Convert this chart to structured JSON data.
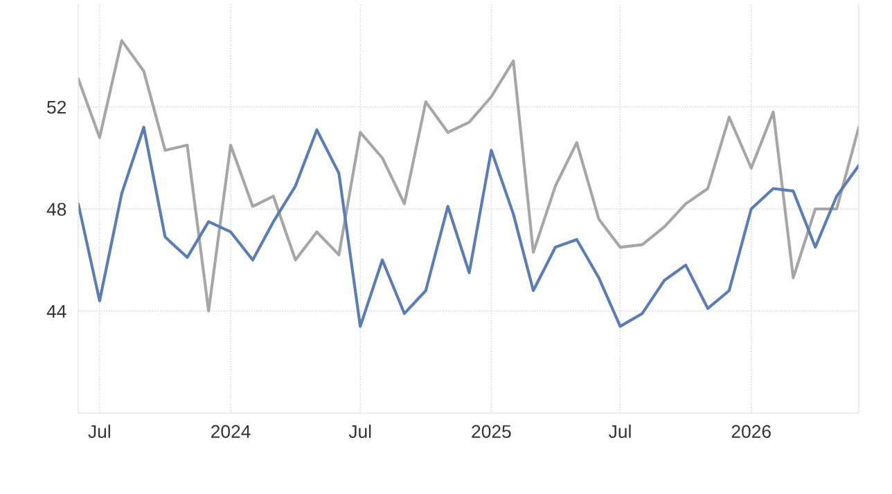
{
  "chart_data": {
    "type": "line",
    "x": [
      "2023-06",
      "2023-07",
      "2023-08",
      "2023-09",
      "2023-10",
      "2023-11",
      "2023-12",
      "2024-01",
      "2024-02",
      "2024-03",
      "2024-04",
      "2024-05",
      "2024-06",
      "2024-07",
      "2024-08",
      "2024-09",
      "2024-10",
      "2024-11",
      "2024-12",
      "2025-01",
      "2025-02",
      "2025-03",
      "2025-04",
      "2025-05",
      "2025-06",
      "2025-07",
      "2025-08",
      "2025-09",
      "2025-10",
      "2025-11",
      "2025-12",
      "2026-01",
      "2026-02",
      "2026-03",
      "2026-04",
      "2026-05",
      "2026-06"
    ],
    "series": [
      {
        "color": "#a6a6a6",
        "values": [
          53.1,
          50.8,
          54.6,
          53.4,
          50.3,
          50.5,
          44.0,
          50.5,
          48.1,
          48.5,
          46.0,
          47.1,
          46.2,
          51.0,
          50.0,
          48.2,
          52.2,
          51.0,
          51.4,
          52.4,
          53.8,
          46.3,
          48.9,
          50.6,
          47.6,
          46.5,
          46.6,
          47.3,
          48.2,
          48.8,
          51.6,
          49.6,
          51.8,
          45.3,
          48.0,
          48.0,
          51.2
        ]
      },
      {
        "color": "#5b7db5",
        "values": [
          48.2,
          44.4,
          48.6,
          51.2,
          46.9,
          46.1,
          47.5,
          47.1,
          46.0,
          47.5,
          48.9,
          51.1,
          49.4,
          43.4,
          46.0,
          43.9,
          44.8,
          48.1,
          45.5,
          50.3,
          47.8,
          44.8,
          46.5,
          46.8,
          45.3,
          43.4,
          43.9,
          45.2,
          45.8,
          44.1,
          44.8,
          48.0,
          48.8,
          48.7,
          46.5,
          48.5,
          49.7
        ]
      }
    ],
    "xlim": [
      "2023-06",
      "2026-06"
    ],
    "xticks": [
      {
        "value": "2023-07",
        "label": "Jul"
      },
      {
        "value": "2024-01",
        "label": "2024"
      },
      {
        "value": "2024-07",
        "label": "Jul"
      },
      {
        "value": "2025-01",
        "label": "2025"
      },
      {
        "value": "2025-07",
        "label": "Jul"
      },
      {
        "value": "2026-01",
        "label": "2026"
      }
    ],
    "ylim": [
      40,
      56
    ],
    "yticks": [
      44,
      48,
      52
    ],
    "grid": true,
    "legend": false
  }
}
